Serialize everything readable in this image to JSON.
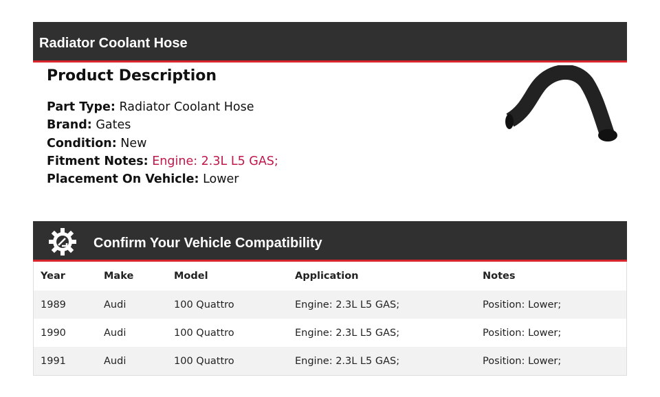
{
  "header": {
    "title": "Radiator Coolant Hose"
  },
  "description": {
    "heading": "Product Description",
    "fields": [
      {
        "label": "Part Type:",
        "value": "Radiator Coolant Hose"
      },
      {
        "label": "Brand:",
        "value": "Gates"
      },
      {
        "label": "Condition:",
        "value": "New"
      },
      {
        "label": "Fitment Notes:",
        "value": "Engine: 2.3L L5 GAS;"
      },
      {
        "label": "Placement On Vehicle:",
        "value": "Lower"
      }
    ]
  },
  "compat": {
    "title": "Confirm Your Vehicle Compatibility",
    "icon": "gear-engine-icon",
    "columns": [
      "Year",
      "Make",
      "Model",
      "Application",
      "Notes"
    ],
    "rows": [
      [
        "1989",
        "Audi",
        "100 Quattro",
        "Engine: 2.3L L5 GAS;",
        "Position: Lower;"
      ],
      [
        "1990",
        "Audi",
        "100 Quattro",
        "Engine: 2.3L L5 GAS;",
        "Position: Lower;"
      ],
      [
        "1991",
        "Audi",
        "100 Quattro",
        "Engine: 2.3L L5 GAS;",
        "Position: Lower;"
      ]
    ]
  },
  "colors": {
    "accent": "#d9252b",
    "header_bg": "#303030",
    "fitment": "#c0174a"
  }
}
